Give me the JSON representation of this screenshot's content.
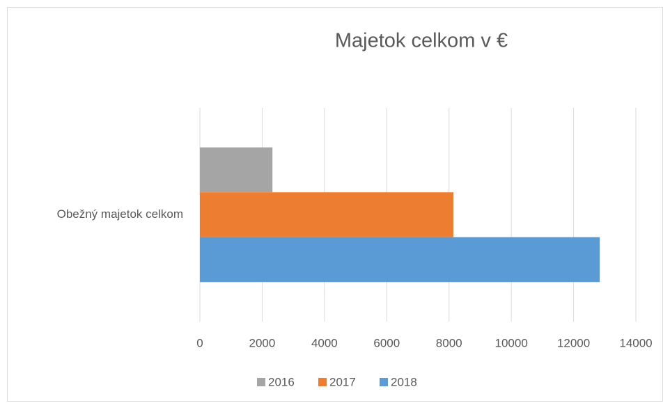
{
  "chart_data": {
    "type": "hbar",
    "title": "Majetok celkom v €",
    "categories": [
      "Obežný majetok celkom"
    ],
    "series": [
      {
        "name": "2016",
        "color": "#a5a5a5",
        "values": [
          2330
        ]
      },
      {
        "name": "2017",
        "color": "#ed7d31",
        "values": [
          8140
        ]
      },
      {
        "name": "2018",
        "color": "#5b9bd5",
        "values": [
          12840
        ]
      }
    ],
    "xlim": [
      0,
      14000
    ],
    "xticks": [
      0,
      2000,
      4000,
      6000,
      8000,
      10000,
      12000,
      14000
    ],
    "grid": true,
    "legend": "bottom"
  }
}
